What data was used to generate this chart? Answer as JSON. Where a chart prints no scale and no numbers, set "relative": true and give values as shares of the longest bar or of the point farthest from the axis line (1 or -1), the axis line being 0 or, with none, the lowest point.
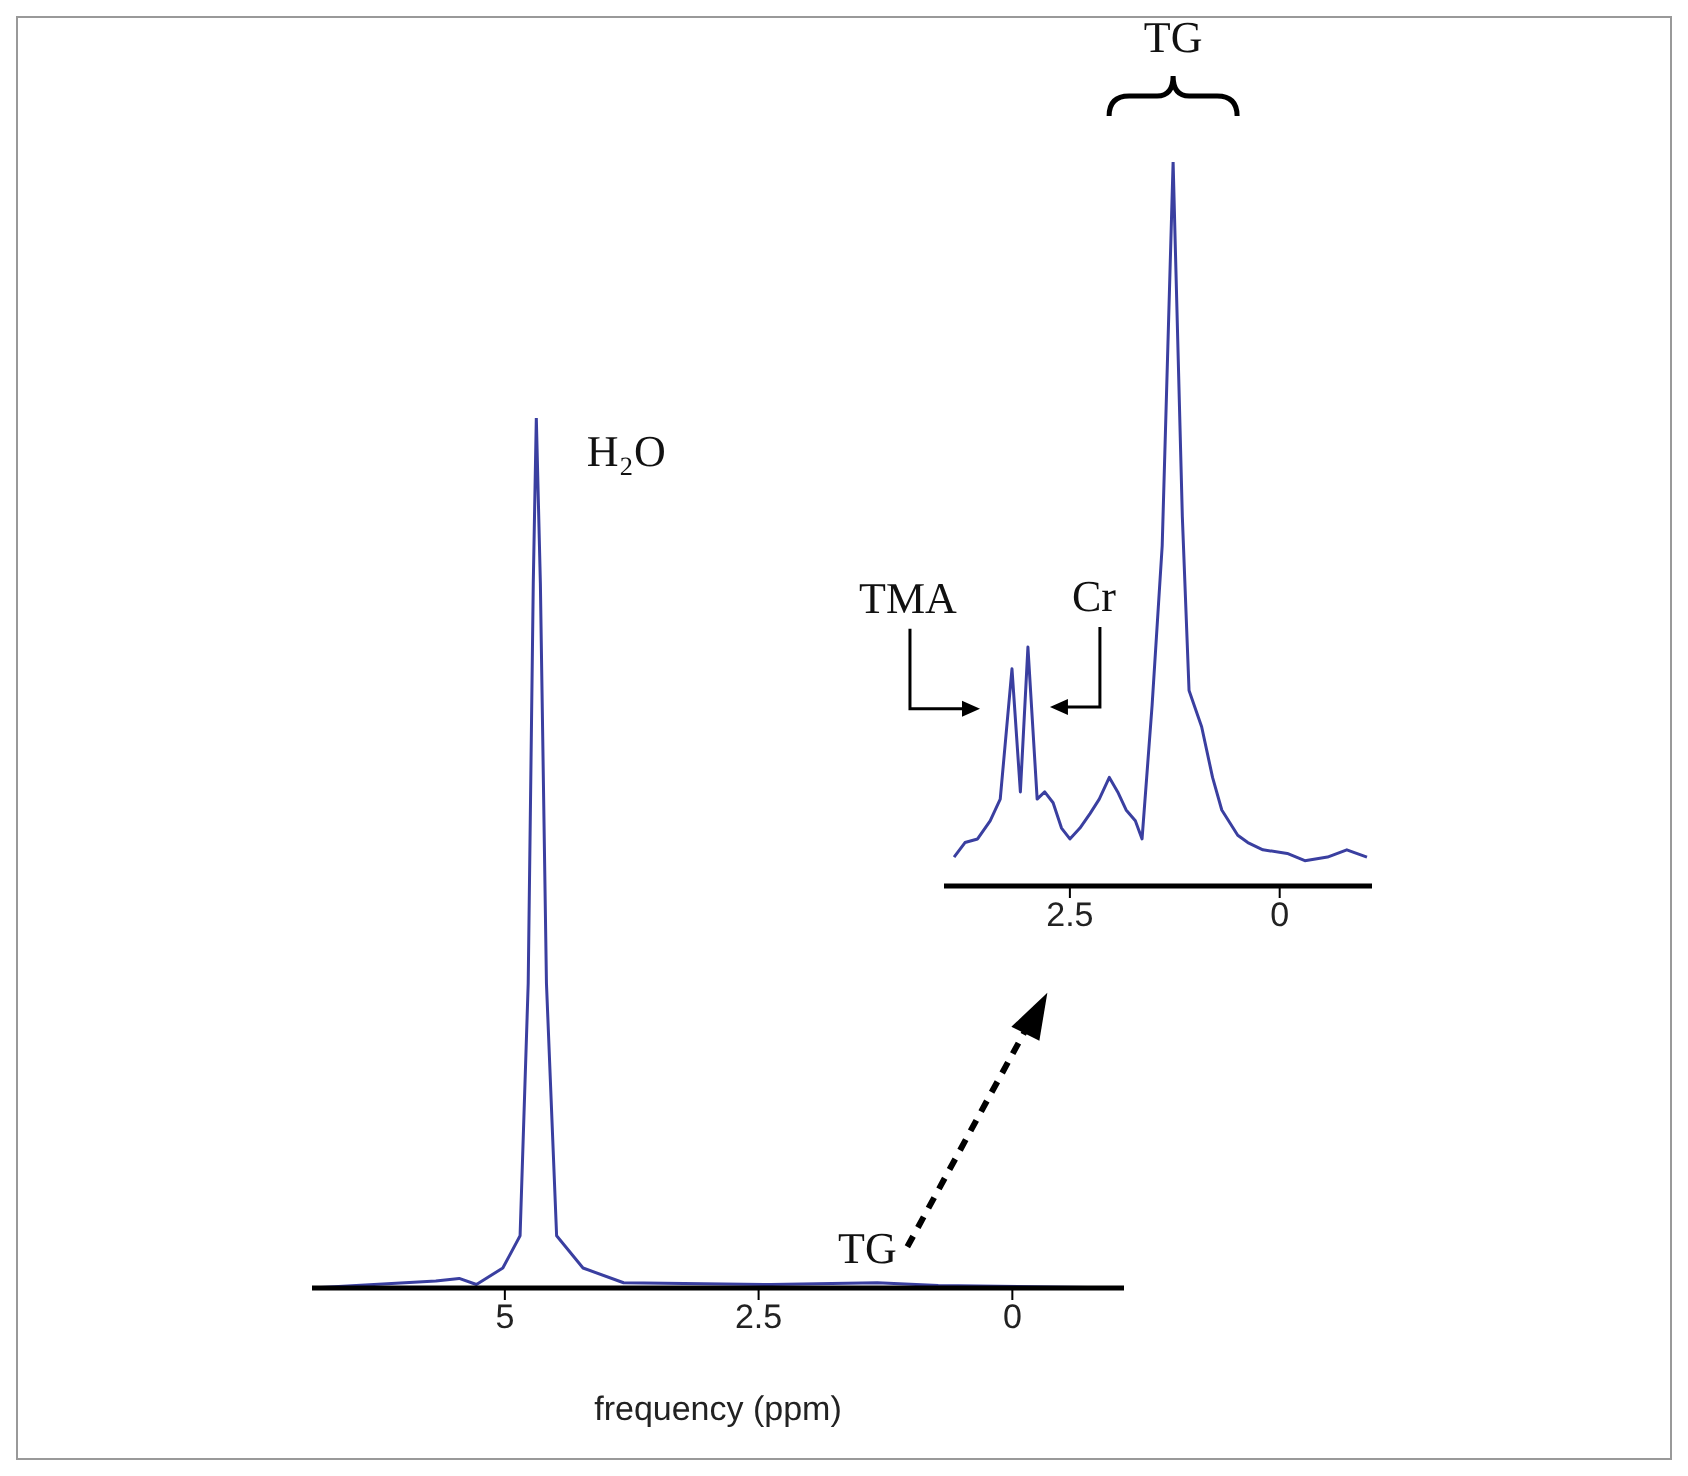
{
  "chart_data": [
    {
      "type": "line",
      "relative": true,
      "xlabel": "frequency (ppm)",
      "color": "#3a3fa0",
      "xlim": [
        6.9,
        -1.1
      ],
      "xticks": [
        5,
        2.5,
        0
      ],
      "x": [
        6.9,
        5.68,
        5.45,
        5.28,
        5.02,
        4.85,
        4.77,
        4.72,
        4.69,
        4.65,
        4.59,
        4.49,
        4.23,
        3.83,
        2.38,
        1.33,
        0.73,
        -1.1
      ],
      "values": [
        0,
        0.008,
        0.011,
        0.004,
        0.023,
        0.06,
        0.35,
        0.81,
        1,
        0.81,
        0.35,
        0.06,
        0.023,
        0.006,
        0.004,
        0.006,
        0.003,
        0
      ],
      "annotations": [
        {
          "text": "H₂O",
          "x": 4.69,
          "y": 1
        },
        {
          "text": "TG",
          "x": 1.33,
          "y": 0.006
        }
      ]
    },
    {
      "type": "line",
      "relative": true,
      "color": "#3a3fa0",
      "xlim": [
        4,
        -1.1
      ],
      "xticks": [
        2.5,
        0
      ],
      "x": [
        3.88,
        3.75,
        3.6,
        3.45,
        3.33,
        3.19,
        3.09,
        3.0,
        2.89,
        2.8,
        2.7,
        2.6,
        2.5,
        2.38,
        2.26,
        2.15,
        2.03,
        1.93,
        1.83,
        1.72,
        1.64,
        1.52,
        1.4,
        1.27,
        1.16,
        1.08,
        0.93,
        0.8,
        0.69,
        0.5,
        0.38,
        0.2,
        -0.09,
        -0.3,
        -0.57,
        -0.8,
        -1.04
      ],
      "values": [
        0.04,
        0.06,
        0.065,
        0.09,
        0.12,
        0.3,
        0.13,
        0.33,
        0.12,
        0.13,
        0.115,
        0.08,
        0.065,
        0.08,
        0.1,
        0.12,
        0.15,
        0.13,
        0.105,
        0.09,
        0.065,
        0.25,
        0.47,
        1,
        0.51,
        0.27,
        0.22,
        0.15,
        0.105,
        0.07,
        0.06,
        0.05,
        0.045,
        0.035,
        0.04,
        0.05,
        0.04
      ],
      "annotations": [
        {
          "text": "TMA",
          "x": 3.19,
          "y": 0.3
        },
        {
          "text": "Cr",
          "x": 3.0,
          "y": 0.33
        },
        {
          "text": "TG",
          "x": 1.27,
          "y": 1
        }
      ]
    }
  ]
}
